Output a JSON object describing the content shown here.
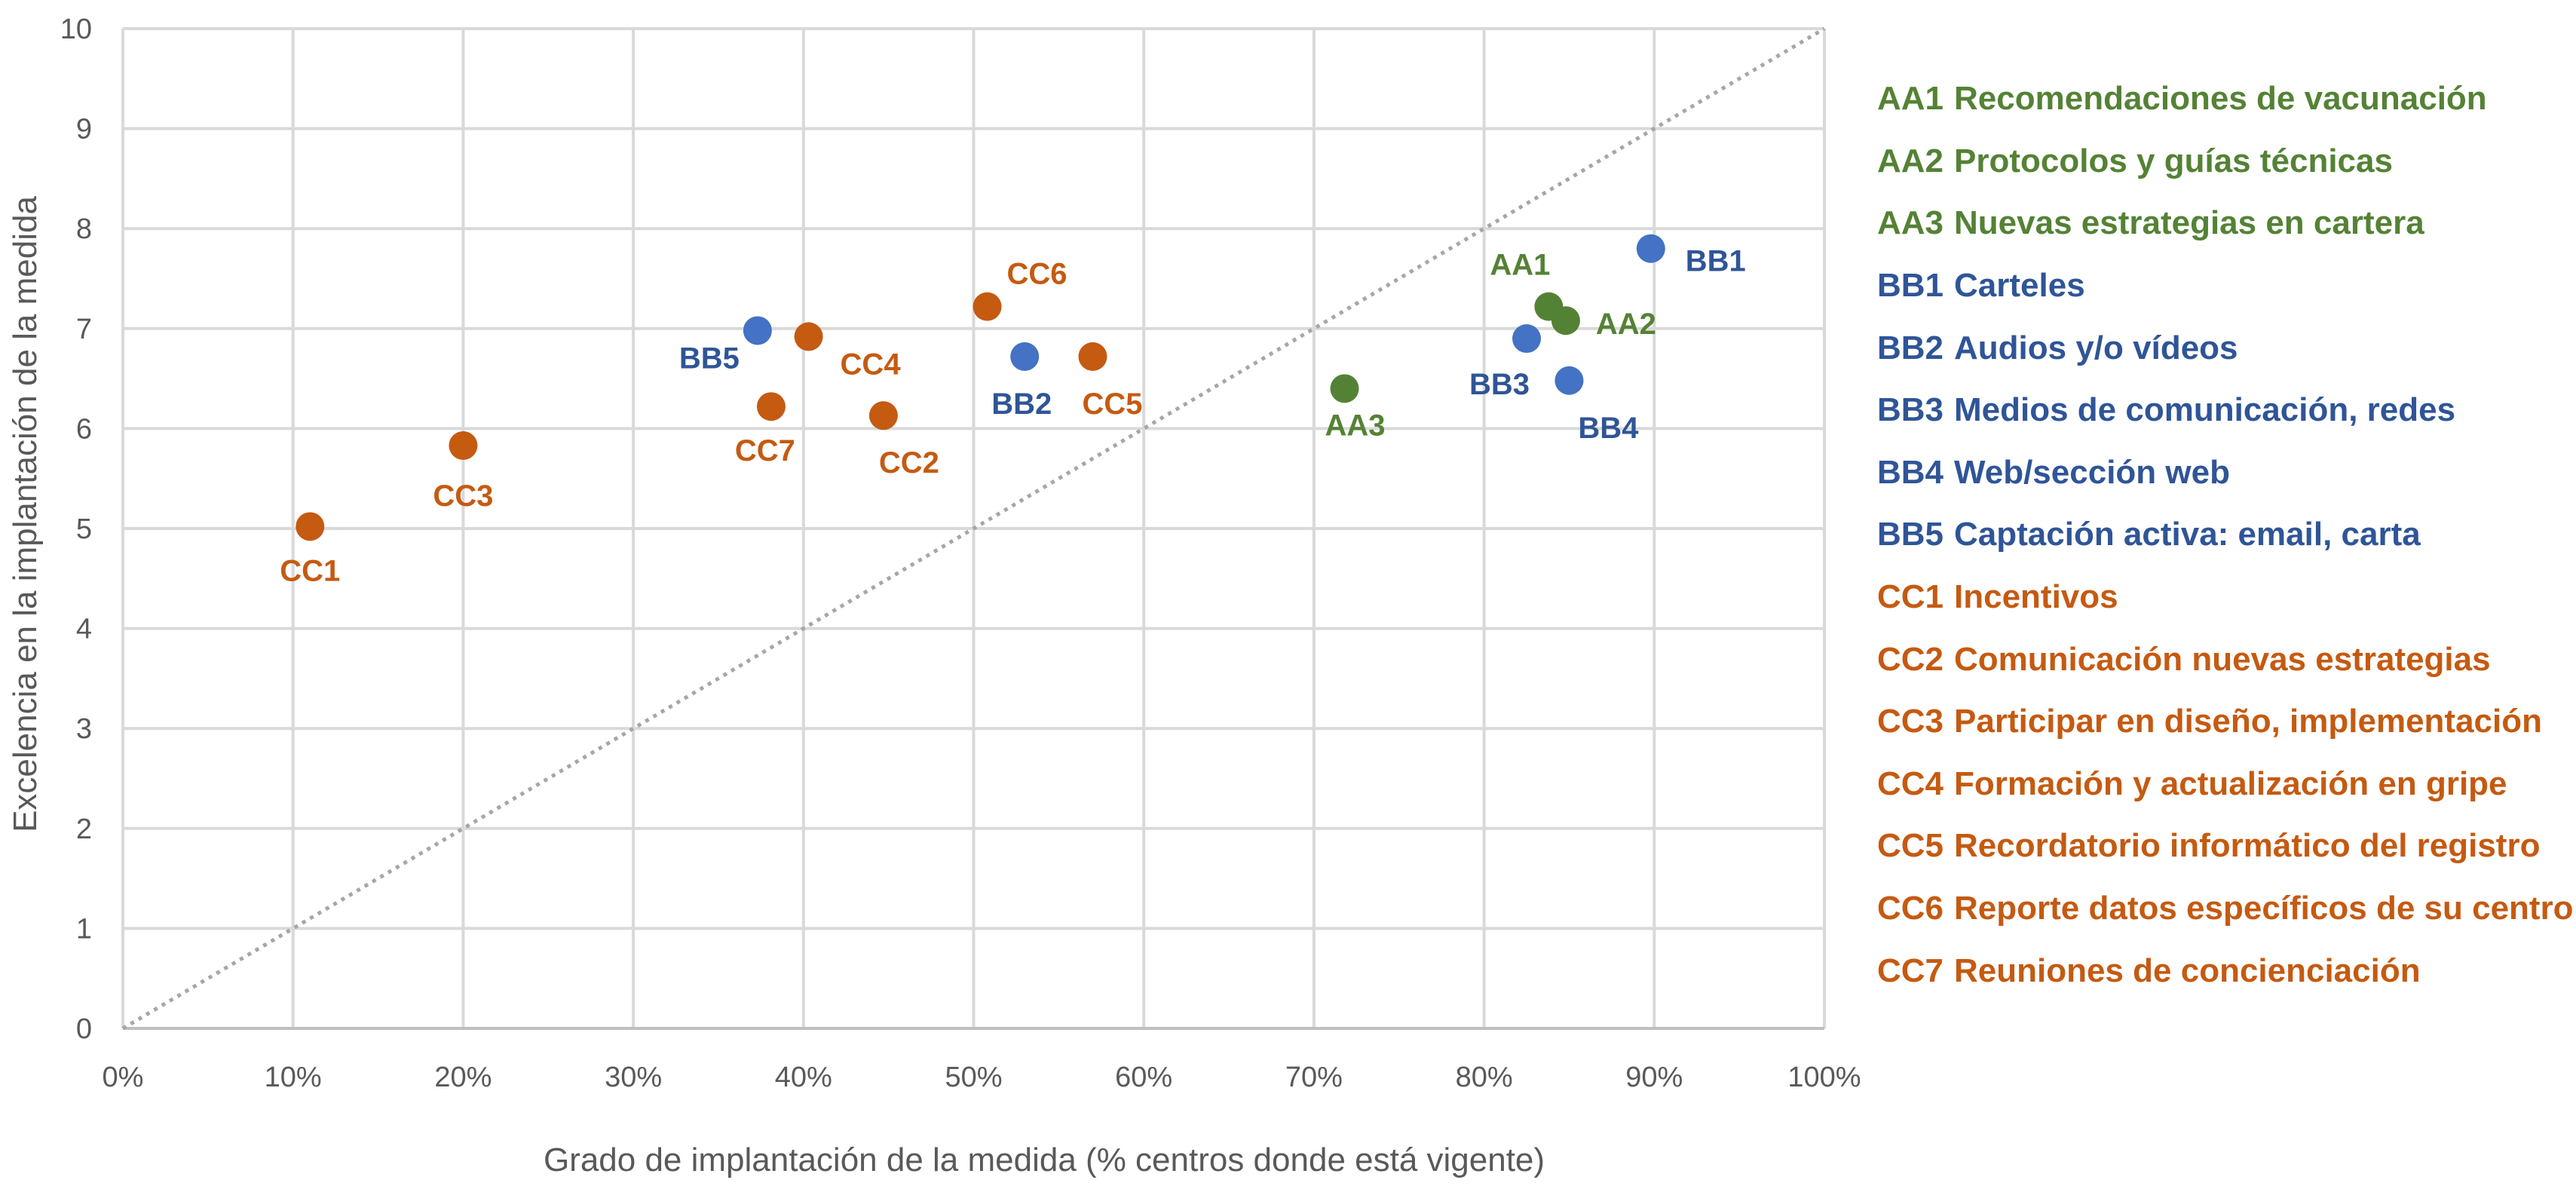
{
  "chart_data": {
    "type": "scatter",
    "xlabel": "Grado de implantación de la medida (% centros donde está vigente)",
    "ylabel": "Excelencia en la implantación de la medida",
    "xlim": [
      0,
      100
    ],
    "ylim": [
      0,
      10
    ],
    "x_ticks": [
      "0%",
      "10%",
      "20%",
      "30%",
      "40%",
      "50%",
      "60%",
      "70%",
      "80%",
      "90%",
      "100%"
    ],
    "y_ticks": [
      "0",
      "1",
      "2",
      "3",
      "4",
      "5",
      "6",
      "7",
      "8",
      "9",
      "10"
    ],
    "grid": true,
    "reference_line": {
      "style": "dotted",
      "from": [
        0,
        0
      ],
      "to": [
        100,
        10
      ]
    },
    "colors": {
      "AA": "#548235",
      "BB": "#4472C4",
      "CC": "#C55A11",
      "labelBB": "#2F5597"
    },
    "points": [
      {
        "code": "AA1",
        "group": "AA",
        "x": 83.8,
        "y": 7.22
      },
      {
        "code": "AA2",
        "group": "AA",
        "x": 84.8,
        "y": 7.08
      },
      {
        "code": "AA3",
        "group": "AA",
        "x": 71.8,
        "y": 6.4
      },
      {
        "code": "BB1",
        "group": "BB",
        "x": 89.8,
        "y": 7.8
      },
      {
        "code": "BB2",
        "group": "BB",
        "x": 53.0,
        "y": 6.72
      },
      {
        "code": "BB3",
        "group": "BB",
        "x": 82.5,
        "y": 6.9
      },
      {
        "code": "BB4",
        "group": "BB",
        "x": 85.0,
        "y": 6.48
      },
      {
        "code": "BB5",
        "group": "BB",
        "x": 37.3,
        "y": 6.98
      },
      {
        "code": "CC1",
        "group": "CC",
        "x": 11.0,
        "y": 5.02
      },
      {
        "code": "CC2",
        "group": "CC",
        "x": 44.7,
        "y": 6.13
      },
      {
        "code": "CC3",
        "group": "CC",
        "x": 20.0,
        "y": 5.83
      },
      {
        "code": "CC4",
        "group": "CC",
        "x": 40.3,
        "y": 6.92
      },
      {
        "code": "CC5",
        "group": "CC",
        "x": 57.0,
        "y": 6.72
      },
      {
        "code": "CC6",
        "group": "CC",
        "x": 50.8,
        "y": 7.22
      },
      {
        "code": "CC7",
        "group": "CC",
        "x": 38.1,
        "y": 6.22
      }
    ],
    "legend": [
      {
        "code": "AA1",
        "group": "AA",
        "text": "Recomendaciones de vacunación"
      },
      {
        "code": "AA2",
        "group": "AA",
        "text": "Protocolos y guías técnicas"
      },
      {
        "code": "AA3",
        "group": "AA",
        "text": "Nuevas estrategias en cartera"
      },
      {
        "code": "BB1",
        "group": "BB",
        "text": "Carteles"
      },
      {
        "code": "BB2",
        "group": "BB",
        "text": "Audios y/o vídeos"
      },
      {
        "code": "BB3",
        "group": "BB",
        "text": "Medios de comunicación, redes"
      },
      {
        "code": "BB4",
        "group": "BB",
        "text": "Web/sección web"
      },
      {
        "code": "BB5",
        "group": "BB",
        "text": "Captación activa: email, carta"
      },
      {
        "code": "CC1",
        "group": "CC",
        "text": "Incentivos"
      },
      {
        "code": "CC2",
        "group": "CC",
        "text": "Comunicación nuevas estrategias"
      },
      {
        "code": "CC3",
        "group": "CC",
        "text": "Participar en diseño, implementación"
      },
      {
        "code": "CC4",
        "group": "CC",
        "text": "Formación y actualización en gripe"
      },
      {
        "code": "CC5",
        "group": "CC",
        "text": "Recordatorio informático del registro"
      },
      {
        "code": "CC6",
        "group": "CC",
        "text": "Reporte datos específicos de su centro"
      },
      {
        "code": "CC7",
        "group": "CC",
        "text": "Reuniones de concienciación"
      }
    ]
  }
}
